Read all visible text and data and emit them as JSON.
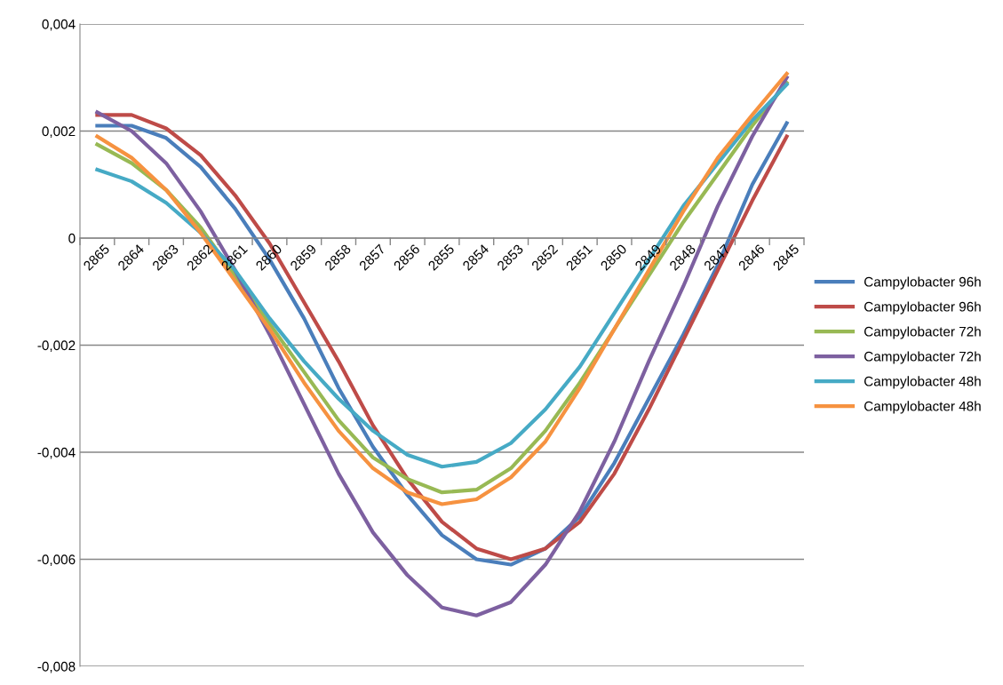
{
  "chart_data": {
    "type": "line",
    "categories": [
      "2865",
      "2864",
      "2863",
      "2862",
      "2861",
      "2860",
      "2859",
      "2858",
      "2857",
      "2856",
      "2855",
      "2854",
      "2853",
      "2852",
      "2851",
      "2850",
      "2849",
      "2848",
      "2847",
      "2846",
      "2845"
    ],
    "ylim": [
      -0.008,
      0.004
    ],
    "yticks": [
      {
        "value": -0.008,
        "label": "-0,008"
      },
      {
        "value": -0.006,
        "label": "-0,006"
      },
      {
        "value": -0.004,
        "label": "-0,004"
      },
      {
        "value": -0.002,
        "label": "-0,002"
      },
      {
        "value": 0,
        "label": "0"
      },
      {
        "value": 0.002,
        "label": "0,002"
      },
      {
        "value": 0.004,
        "label": "0,004"
      }
    ],
    "grid": "y",
    "legend": "right",
    "line_style": "solid",
    "marker": "none",
    "series": [
      {
        "name": "Campylobacter 96h",
        "color": "#4a7ebb",
        "values": [
          0.0021,
          0.0021,
          0.00187,
          0.00133,
          0.00055,
          -0.0004,
          -0.0015,
          -0.0028,
          -0.0039,
          -0.0048,
          -0.00555,
          -0.006,
          -0.0061,
          -0.0058,
          -0.0052,
          -0.0042,
          -0.003,
          -0.0018,
          -0.0005,
          0.001,
          0.00215
        ]
      },
      {
        "name": "Campylobacter 96h",
        "color": "#be4b48",
        "values": [
          0.0023,
          0.0023,
          0.00205,
          0.00155,
          0.0008,
          -0.0001,
          -0.0012,
          -0.0023,
          -0.0035,
          -0.0045,
          -0.0053,
          -0.0058,
          -0.006,
          -0.0058,
          -0.0053,
          -0.0044,
          -0.0032,
          -0.0019,
          -0.0006,
          0.0007,
          0.0019
        ]
      },
      {
        "name": "Campylobacter 72h",
        "color": "#98b954",
        "values": [
          0.00175,
          0.0014,
          0.0009,
          0.0002,
          -0.0007,
          -0.0016,
          -0.0025,
          -0.0034,
          -0.0041,
          -0.0045,
          -0.00475,
          -0.0047,
          -0.0043,
          -0.0036,
          -0.0027,
          -0.0017,
          -0.0007,
          0.0003,
          0.0012,
          0.0021,
          0.0029
        ]
      },
      {
        "name": "Campylobacter 72h",
        "color": "#7d60a0",
        "values": [
          0.00235,
          0.002,
          0.0014,
          0.0005,
          -0.0006,
          -0.0018,
          -0.0031,
          -0.0044,
          -0.0055,
          -0.0063,
          -0.0069,
          -0.00705,
          -0.0068,
          -0.0061,
          -0.0051,
          -0.0038,
          -0.0023,
          -0.0009,
          0.0006,
          0.0019,
          0.003
        ]
      },
      {
        "name": "Campylobacter 48h",
        "color": "#46aac5",
        "values": [
          0.00128,
          0.00106,
          0.00066,
          0.0001,
          -0.0006,
          -0.0015,
          -0.0023,
          -0.003,
          -0.0036,
          -0.00405,
          -0.00427,
          -0.00418,
          -0.00383,
          -0.0032,
          -0.0024,
          -0.0014,
          -0.0004,
          0.0006,
          0.0014,
          0.0022,
          0.00287
        ]
      },
      {
        "name": "Campylobacter 48h",
        "color": "#f69240",
        "values": [
          0.0019,
          0.0015,
          0.0009,
          0.0001,
          -0.0008,
          -0.0017,
          -0.0027,
          -0.0036,
          -0.0043,
          -0.00475,
          -0.00497,
          -0.00488,
          -0.00447,
          -0.0038,
          -0.0028,
          -0.0017,
          -0.0006,
          0.0005,
          0.0015,
          0.0023,
          0.00307
        ]
      }
    ]
  }
}
